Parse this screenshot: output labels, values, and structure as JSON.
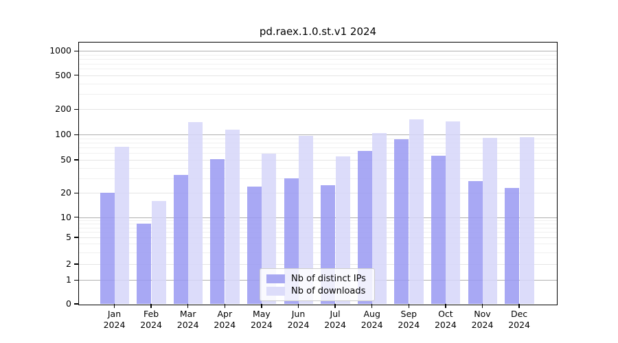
{
  "chart_data": {
    "type": "bar",
    "title": "pd.raex.1.0.st.v1 2024",
    "categories": [
      {
        "month": "Jan",
        "year": "2024"
      },
      {
        "month": "Feb",
        "year": "2024"
      },
      {
        "month": "Mar",
        "year": "2024"
      },
      {
        "month": "Apr",
        "year": "2024"
      },
      {
        "month": "May",
        "year": "2024"
      },
      {
        "month": "Jun",
        "year": "2024"
      },
      {
        "month": "Jul",
        "year": "2024"
      },
      {
        "month": "Aug",
        "year": "2024"
      },
      {
        "month": "Sep",
        "year": "2024"
      },
      {
        "month": "Oct",
        "year": "2024"
      },
      {
        "month": "Nov",
        "year": "2024"
      },
      {
        "month": "Dec",
        "year": "2024"
      }
    ],
    "series": [
      {
        "name": "Nb of distinct IPs",
        "color": "#a8a8f2",
        "values": [
          20,
          8,
          33,
          51,
          24,
          30,
          25,
          64,
          88,
          56,
          28,
          23
        ]
      },
      {
        "name": "Nb of downloads",
        "color": "#dcdcfa",
        "values": [
          72,
          16,
          142,
          115,
          59,
          97,
          55,
          105,
          151,
          144,
          92,
          94
        ]
      }
    ],
    "y_axis": {
      "scale": "symlog",
      "tick_values": [
        0,
        1,
        2,
        5,
        10,
        20,
        50,
        100,
        200,
        500,
        1000
      ],
      "tick_labels": [
        "0",
        "1",
        "2",
        "5",
        "10",
        "20",
        "50",
        "100",
        "200",
        "500",
        "1000"
      ],
      "ylim": [
        0,
        1100
      ]
    },
    "grid": true,
    "legend_position": "lower center"
  },
  "colors": {
    "major_power_grid": "#b0b0b0",
    "major_grid": "#e4e4e4",
    "minor_grid": "#f0f0f0",
    "axis": "#000000",
    "background": "#ffffff"
  }
}
